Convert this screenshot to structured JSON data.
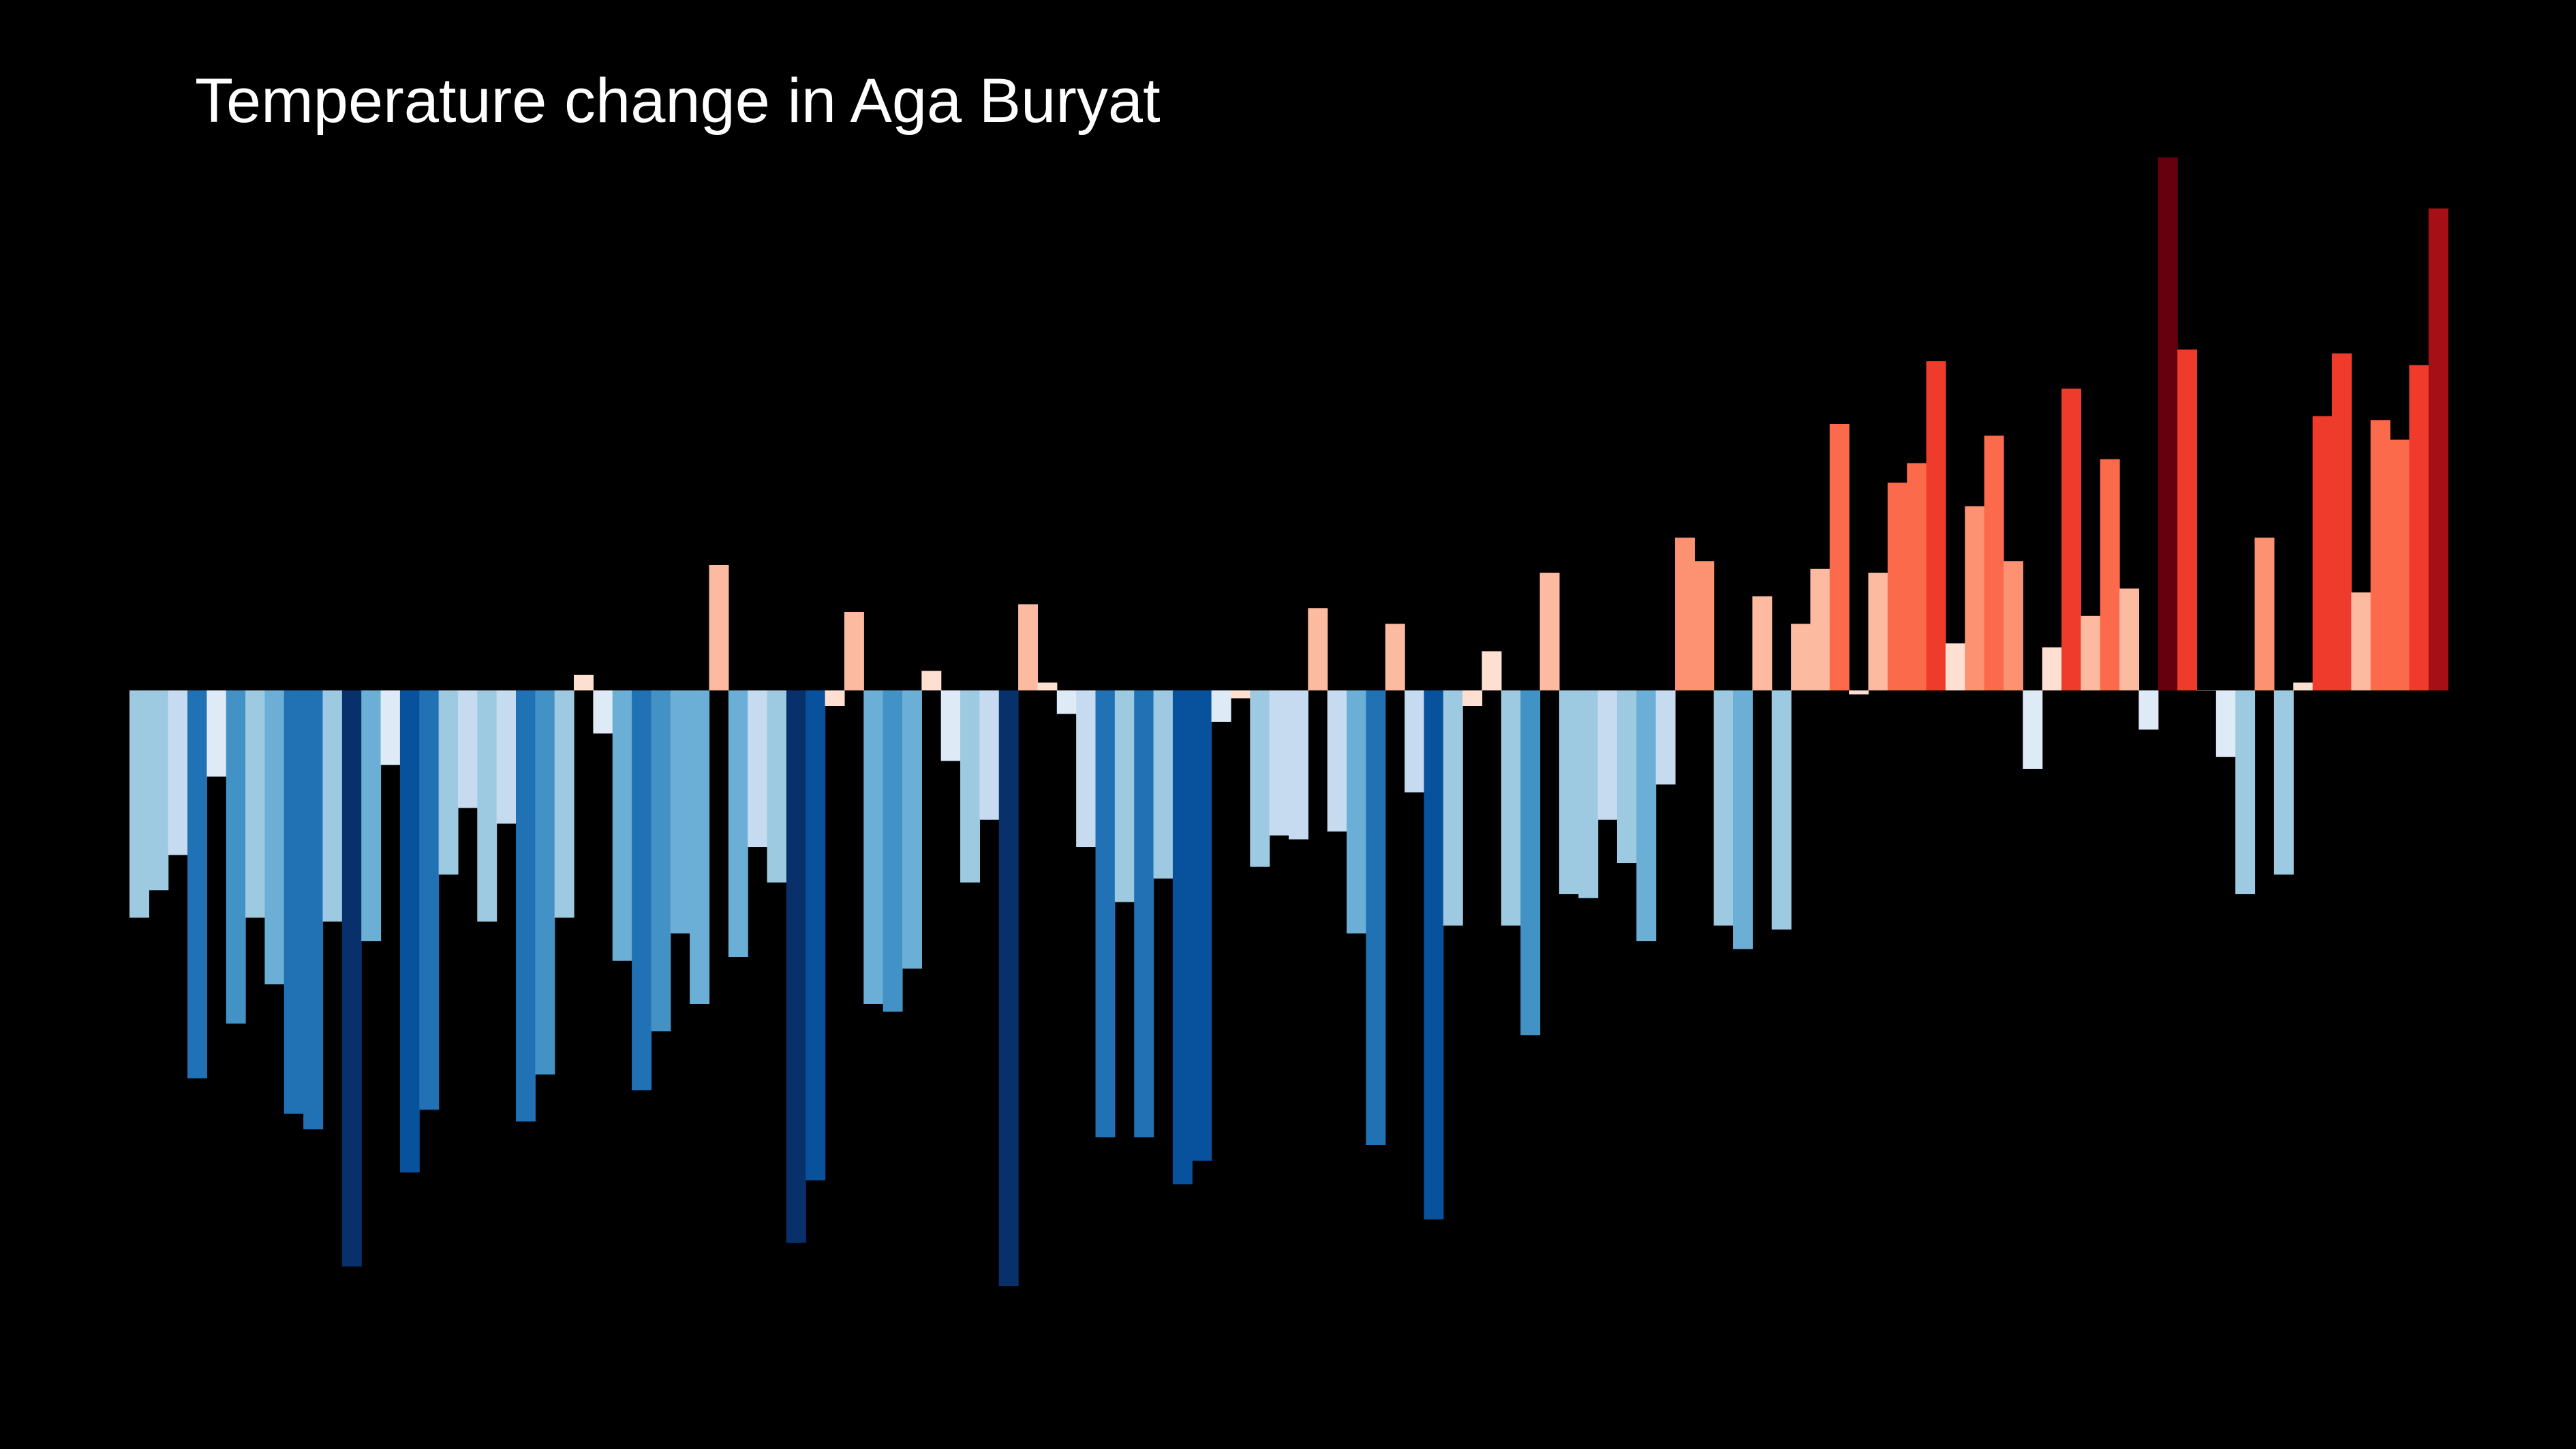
{
  "page": {
    "background": "#000000"
  },
  "chart_data": {
    "type": "bar",
    "title": "Temperature change in Aga Buryat",
    "xlabel": "",
    "ylabel": "",
    "grid": false,
    "legend": "none",
    "values": [
      -0.58,
      -0.51,
      -0.42,
      -0.99,
      -0.22,
      -0.85,
      -0.58,
      -0.75,
      -1.08,
      -1.12,
      -0.59,
      -1.47,
      -0.64,
      -0.19,
      -1.23,
      -1.07,
      -0.47,
      -0.3,
      -0.59,
      -0.34,
      -1.1,
      -0.98,
      -0.58,
      0.04,
      -0.11,
      -0.69,
      -1.02,
      -0.87,
      -0.62,
      -0.8,
      0.32,
      -0.68,
      -0.4,
      -0.49,
      -1.41,
      -1.25,
      -0.04,
      0.2,
      -0.8,
      -0.82,
      -0.71,
      0.05,
      -0.18,
      -0.49,
      -0.33,
      -1.52,
      0.22,
      0.02,
      -0.06,
      -0.4,
      -1.14,
      -0.54,
      -1.14,
      -0.48,
      -1.26,
      -1.2,
      -0.08,
      -0.02,
      -0.45,
      -0.37,
      -0.38,
      0.21,
      -0.36,
      -0.62,
      -1.16,
      0.17,
      -0.26,
      -1.35,
      -0.6,
      -0.04,
      0.1,
      -0.6,
      -0.88,
      0.3,
      -0.52,
      -0.53,
      -0.33,
      -0.44,
      -0.64,
      -0.24,
      0.39,
      0.33,
      -0.6,
      -0.66,
      0.24,
      -0.61,
      0.17,
      0.31,
      0.68,
      -0.01,
      0.3,
      0.53,
      0.58,
      0.84,
      0.12,
      0.47,
      0.65,
      0.33,
      -0.2,
      0.11,
      0.77,
      0.19,
      0.59,
      0.26,
      -0.1,
      1.36,
      0.87,
      0.0,
      -0.17,
      -0.52,
      0.39,
      -0.47,
      0.02,
      0.7,
      0.86,
      0.25,
      0.69,
      0.64,
      0.83,
      1.23
    ],
    "colors": {
      "scale": [
        "#08306b",
        "#08519c",
        "#2171b5",
        "#4292c6",
        "#6baed6",
        "#9ecae1",
        "#c6dbef",
        "#deebf7",
        "#fee0d2",
        "#fcbba1",
        "#fc9272",
        "#fb6a4a",
        "#ef3b2c",
        "#cb181d",
        "#a50f15",
        "#67000d"
      ]
    }
  }
}
